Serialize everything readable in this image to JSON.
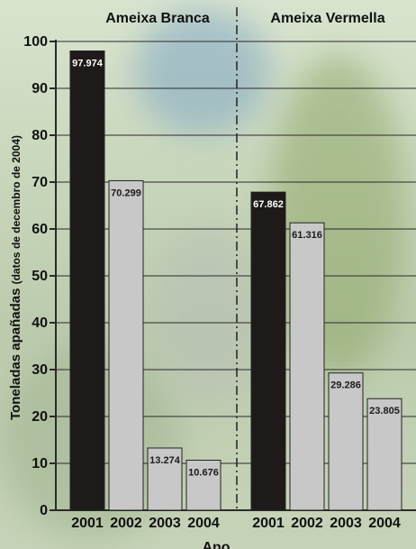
{
  "chart_data": {
    "type": "bar",
    "groups": [
      {
        "name": "Ameixa Branca",
        "categories": [
          "2001",
          "2002",
          "2003",
          "2004"
        ],
        "values": [
          97.974,
          70.299,
          13.274,
          10.676
        ],
        "labels": [
          "97.974",
          "70.299",
          "13.274",
          "10.676"
        ]
      },
      {
        "name": "Ameixa Vermella",
        "categories": [
          "2001",
          "2002",
          "2003",
          "2004"
        ],
        "values": [
          67.862,
          61.316,
          29.286,
          23.805
        ],
        "labels": [
          "67.862",
          "61.316",
          "29.286",
          "23.805"
        ]
      }
    ],
    "ylabel_main": "Toneladas apañadas",
    "ylabel_sub": "(datos de decembro de 2004)",
    "xlabel": "Ano",
    "ylim": [
      0,
      100
    ],
    "yticks": [
      0,
      10,
      20,
      30,
      40,
      50,
      60,
      70,
      80,
      90,
      100
    ],
    "grid": true,
    "colors": {
      "highlight_bar": "#1d1a19",
      "bar": "#c8c8c8",
      "bar_stroke": "#222222",
      "highlight_label": "#ffffff",
      "label": "#1a1a1a",
      "grid": "#2a2a2a",
      "text": "#111111"
    }
  }
}
